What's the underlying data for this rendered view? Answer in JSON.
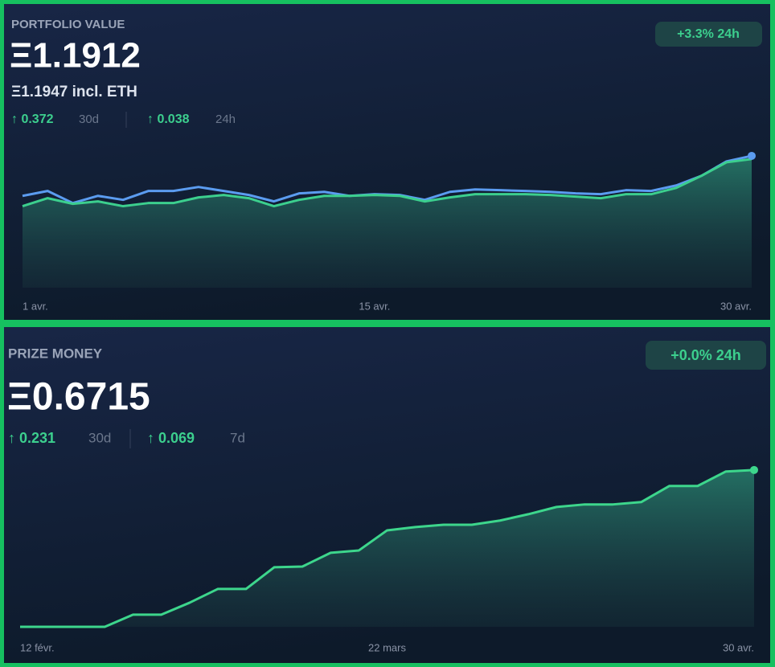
{
  "chart_data": [
    {
      "type": "line",
      "title": "PORTFOLIO VALUE",
      "value": "Ξ1.1912",
      "subtitle": "Ξ1.1947 incl. ETH",
      "badge": "+3.3% 24h",
      "stats": [
        {
          "value": "↑ 0.372",
          "period": "30d"
        },
        {
          "value": "↑ 0.038",
          "period": "24h"
        }
      ],
      "categories": [
        "1 avr.",
        null,
        null,
        null,
        null,
        null,
        null,
        null,
        null,
        null,
        null,
        null,
        null,
        null,
        "15 avr.",
        null,
        null,
        null,
        null,
        null,
        null,
        null,
        null,
        null,
        null,
        null,
        null,
        null,
        null,
        "30 avr."
      ],
      "ylim": [
        0,
        1.4
      ],
      "series": [
        {
          "color": "#5b9cf0",
          "values": [
            0.829,
            0.873,
            0.764,
            0.829,
            0.793,
            0.873,
            0.873,
            0.909,
            0.873,
            0.837,
            0.779,
            0.851,
            0.865,
            0.829,
            0.844,
            0.837,
            0.793,
            0.865,
            0.887,
            0.88,
            0.873,
            0.865,
            0.851,
            0.844,
            0.88,
            0.873,
            0.923,
            1.01,
            1.14,
            1.19
          ]
        },
        {
          "color": "#3ccf8e",
          "values": [
            0.736,
            0.808,
            0.757,
            0.779,
            0.736,
            0.764,
            0.764,
            0.815,
            0.837,
            0.808,
            0.736,
            0.793,
            0.829,
            0.829,
            0.837,
            0.829,
            0.779,
            0.815,
            0.844,
            0.844,
            0.844,
            0.837,
            0.822,
            0.808,
            0.844,
            0.844,
            0.901,
            1.01,
            1.132,
            1.161
          ]
        }
      ]
    },
    {
      "type": "line",
      "title": "PRIZE MONEY",
      "value": "Ξ0.6715",
      "badge": "+0.0% 24h",
      "stats": [
        {
          "value": "↑ 0.231",
          "period": "30d"
        },
        {
          "value": "↑ 0.069",
          "period": "7d"
        }
      ],
      "categories": [
        "12 févr.",
        null,
        null,
        null,
        null,
        null,
        null,
        null,
        null,
        null,
        null,
        null,
        null,
        "22 mars",
        null,
        null,
        null,
        null,
        null,
        null,
        null,
        null,
        null,
        null,
        null,
        null,
        "30 avr."
      ],
      "ylim": [
        0,
        0.75
      ],
      "series": [
        {
          "color": "#3dd68c",
          "values": [
            0,
            0,
            0,
            0,
            0.052,
            0.052,
            0.103,
            0.162,
            0.162,
            0.255,
            0.258,
            0.317,
            0.327,
            0.413,
            0.427,
            0.437,
            0.437,
            0.455,
            0.482,
            0.513,
            0.524,
            0.524,
            0.534,
            0.603,
            0.603,
            0.665,
            0.6715
          ]
        }
      ]
    }
  ]
}
